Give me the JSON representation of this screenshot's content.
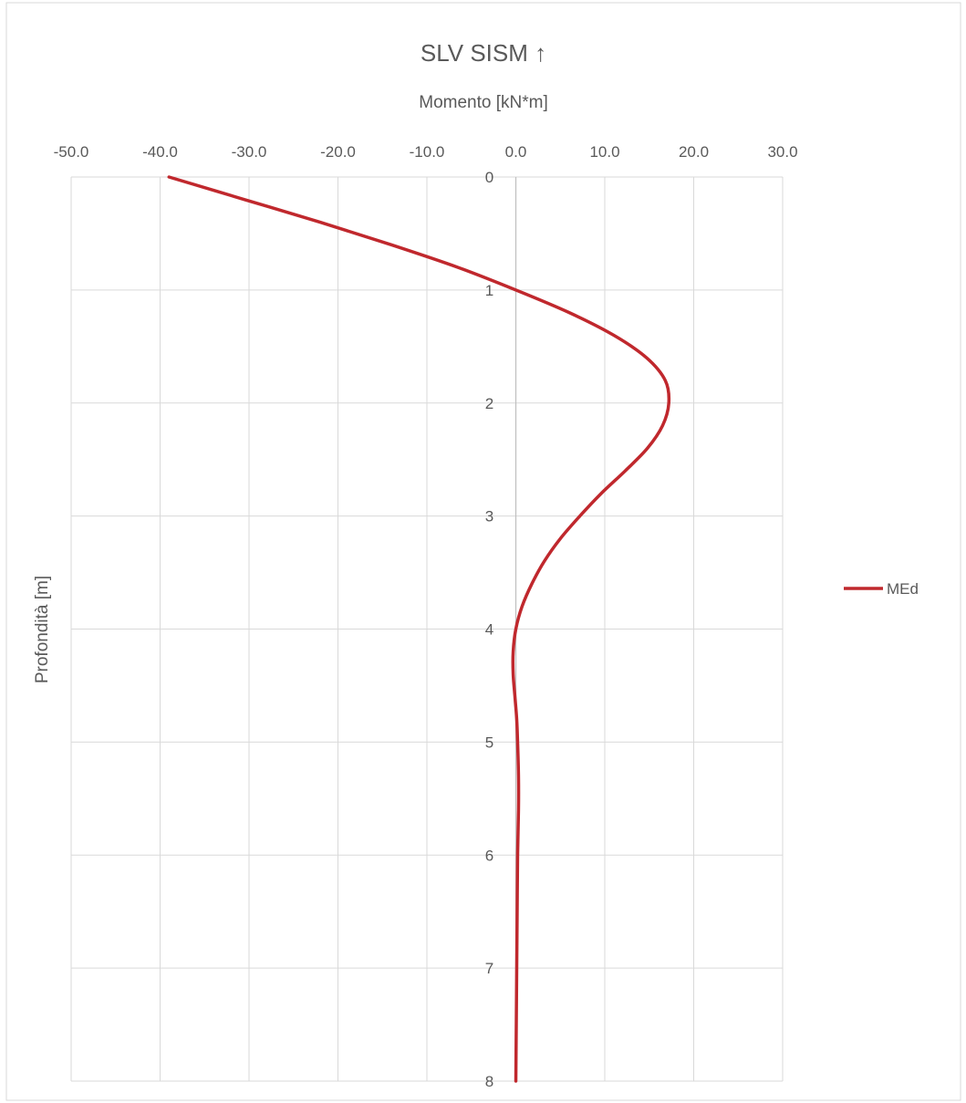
{
  "chart_data": {
    "type": "line",
    "title": "SLV SISM ↑",
    "xlabel": "Momento [kN*m]",
    "ylabel": "Profondità [m]",
    "xlim": [
      -50,
      30
    ],
    "ylim": [
      0,
      8
    ],
    "y_inverted": true,
    "x_axis_position": "top",
    "x_ticks": [
      -50,
      -40,
      -30,
      -20,
      -10,
      0,
      10,
      20,
      30
    ],
    "x_tick_labels": [
      "-50.0",
      "-40.0",
      "-30.0",
      "-20.0",
      "-10.0",
      "0.0",
      "10.0",
      "20.0",
      "30.0"
    ],
    "y_ticks": [
      0,
      1,
      2,
      3,
      4,
      5,
      6,
      7,
      8
    ],
    "y_tick_labels": [
      "0",
      "1",
      "2",
      "3",
      "4",
      "5",
      "6",
      "7",
      "8"
    ],
    "grid": true,
    "legend_position": "right",
    "series": [
      {
        "name": "MEd",
        "color": "#c0282d",
        "points": [
          {
            "x": -39.0,
            "y": 0.0
          },
          {
            "x": -30.5,
            "y": 0.2
          },
          {
            "x": -22.0,
            "y": 0.4
          },
          {
            "x": -14.0,
            "y": 0.6
          },
          {
            "x": -6.5,
            "y": 0.8
          },
          {
            "x": 0.0,
            "y": 1.0
          },
          {
            "x": 6.0,
            "y": 1.2
          },
          {
            "x": 11.0,
            "y": 1.4
          },
          {
            "x": 14.7,
            "y": 1.6
          },
          {
            "x": 16.8,
            "y": 1.8
          },
          {
            "x": 17.2,
            "y": 2.0
          },
          {
            "x": 16.5,
            "y": 2.2
          },
          {
            "x": 14.8,
            "y": 2.4
          },
          {
            "x": 12.3,
            "y": 2.6
          },
          {
            "x": 9.6,
            "y": 2.8
          },
          {
            "x": 7.2,
            "y": 3.0
          },
          {
            "x": 5.0,
            "y": 3.2
          },
          {
            "x": 3.2,
            "y": 3.4
          },
          {
            "x": 1.8,
            "y": 3.6
          },
          {
            "x": 0.7,
            "y": 3.8
          },
          {
            "x": 0.0,
            "y": 4.0
          },
          {
            "x": -0.3,
            "y": 4.2
          },
          {
            "x": -0.3,
            "y": 4.4
          },
          {
            "x": -0.1,
            "y": 4.6
          },
          {
            "x": 0.1,
            "y": 4.8
          },
          {
            "x": 0.2,
            "y": 5.0
          },
          {
            "x": 0.3,
            "y": 5.3
          },
          {
            "x": 0.3,
            "y": 5.6
          },
          {
            "x": 0.2,
            "y": 6.0
          },
          {
            "x": 0.15,
            "y": 6.5
          },
          {
            "x": 0.1,
            "y": 7.0
          },
          {
            "x": 0.05,
            "y": 7.5
          },
          {
            "x": 0.0,
            "y": 8.0
          }
        ]
      }
    ]
  }
}
